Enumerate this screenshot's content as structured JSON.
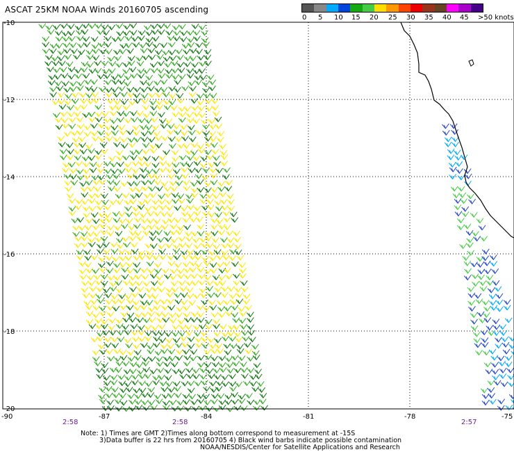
{
  "title": "ASCAT 25KM NOAA Winds 20160705 ascending",
  "legend": {
    "colors": [
      "#555555",
      "#888888",
      "#00aaff",
      "#0044dd",
      "#11aa11",
      "#44cc44",
      "#ffdd00",
      "#ff9900",
      "#ff4400",
      "#ee0000",
      "#99331a",
      "#664422",
      "#ff00ff",
      "#aa00cc",
      "#440088"
    ],
    "labels": [
      "0",
      "5",
      "10",
      "15",
      "20",
      "25",
      "30",
      "35",
      "40",
      "45",
      ">50 knots"
    ]
  },
  "axes": {
    "y_labels": [
      "-10",
      "-12",
      "-14",
      "-16",
      "-18",
      "-20"
    ],
    "x_labels": [
      "-90",
      "-87",
      "-84",
      "-81",
      "-78",
      "-75"
    ]
  },
  "times": [
    "2:58",
    "2:58",
    "2:57"
  ],
  "notes": [
    "Note: 1) Times are GMT 2)Times along bottom correspond to measurement at -15S",
    "3)Data buffer is 22 hrs from 20160705 4) Black wind barbs indicate possible contamination",
    "NOAA/NESDIS/Center for Satellite Applications and Research"
  ]
}
